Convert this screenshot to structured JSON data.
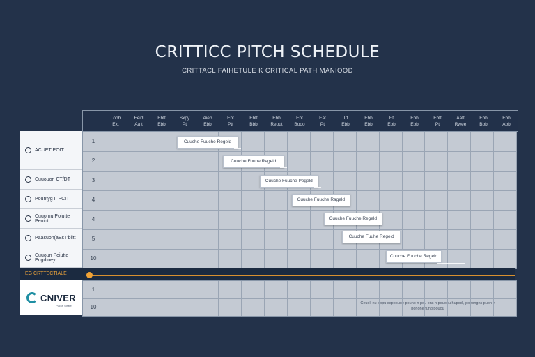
{
  "header": {
    "title": "CRITTICC PITCH SCHEDULE",
    "subtitle": "CRITTACL FAIHETULE  K  CRITICAL PATH MANIOOD"
  },
  "columns": [
    {
      "top": "Loob",
      "bottom": "Ext"
    },
    {
      "top": "Eeid",
      "bottom": "Aa t"
    },
    {
      "top": "Ebtt",
      "bottom": "Ebb"
    },
    {
      "top": "Sxpy",
      "bottom": "Pt"
    },
    {
      "top": "Aieb",
      "bottom": "Ebb"
    },
    {
      "top": "Ebt",
      "bottom": "Ptt"
    },
    {
      "top": "Ebtt",
      "bottom": "Bbb"
    },
    {
      "top": "Ebb",
      "bottom": "Reout"
    },
    {
      "top": "Ebt",
      "bottom": "Booo"
    },
    {
      "top": "Eat",
      "bottom": "Pt"
    },
    {
      "top": "T't",
      "bottom": "Ebb"
    },
    {
      "top": "Ebb",
      "bottom": "Ebb"
    },
    {
      "top": "Et",
      "bottom": "Ebb"
    },
    {
      "top": "Ebb",
      "bottom": "Ebb"
    },
    {
      "top": "Ebtt",
      "bottom": "Pt"
    },
    {
      "top": "Aatt",
      "bottom": "Rwee"
    },
    {
      "top": "Ebb",
      "bottom": "Bbb"
    },
    {
      "top": "Ebb",
      "bottom": "Abb"
    }
  ],
  "tasks": [
    {
      "label": "ACUET POIT",
      "row_num": "1"
    },
    {
      "label": "",
      "row_num": "2"
    },
    {
      "label": "Cuuouon CT/DT",
      "row_num": "3"
    },
    {
      "label": "Pountyg  II PCIT",
      "row_num": "4"
    },
    {
      "label": "Cuuomu Poiutte Peoint",
      "row_num": "4"
    },
    {
      "label": "Paasuon(aEsT'biltt",
      "row_num": "5"
    },
    {
      "label": "Cuuoun Poiutte Engdtoey",
      "row_num": "10"
    }
  ],
  "critical_path": {
    "label": "EG CRTTECTIALE",
    "color": "#d8902f"
  },
  "logo": {
    "name": "CNIVER",
    "tagline": "Pucks Strate"
  },
  "bottom_rows": [
    "1",
    "10"
  ],
  "footer_note": "Ceuoli nu popu sepopuoe pouno n pou ons n pouopu hupodi, poeongns pupn n pononenung pouou",
  "chart_data": {
    "type": "gantt",
    "title": "CRITTICC PITCH SCHEDULE",
    "subtitle": "CRITTACL FAIHETULE  K  CRITICAL PATH MANIOOD",
    "column_count": 18,
    "bars": [
      {
        "label": "Cuuche Fuuche Regeld",
        "start_col": 3.2,
        "end_col": 5.8
      },
      {
        "label": "Cuuche Fuuhe Regeld",
        "start_col": 5.2,
        "end_col": 7.8
      },
      {
        "label": "Cuuche Fuuche Pegeld",
        "start_col": 6.8,
        "end_col": 9.3
      },
      {
        "label": "Cuuche Fuuche Rageld",
        "start_col": 8.2,
        "end_col": 10.7
      },
      {
        "label": "Cuuche Fuuche Regeld",
        "start_col": 9.6,
        "end_col": 12.1
      },
      {
        "label": "Cuuche Fuuhe Regeld",
        "start_col": 10.4,
        "end_col": 12.9
      },
      {
        "label": "Cuuche Fuuche Regeld",
        "start_col": 12.3,
        "end_col": 14.7
      }
    ]
  }
}
